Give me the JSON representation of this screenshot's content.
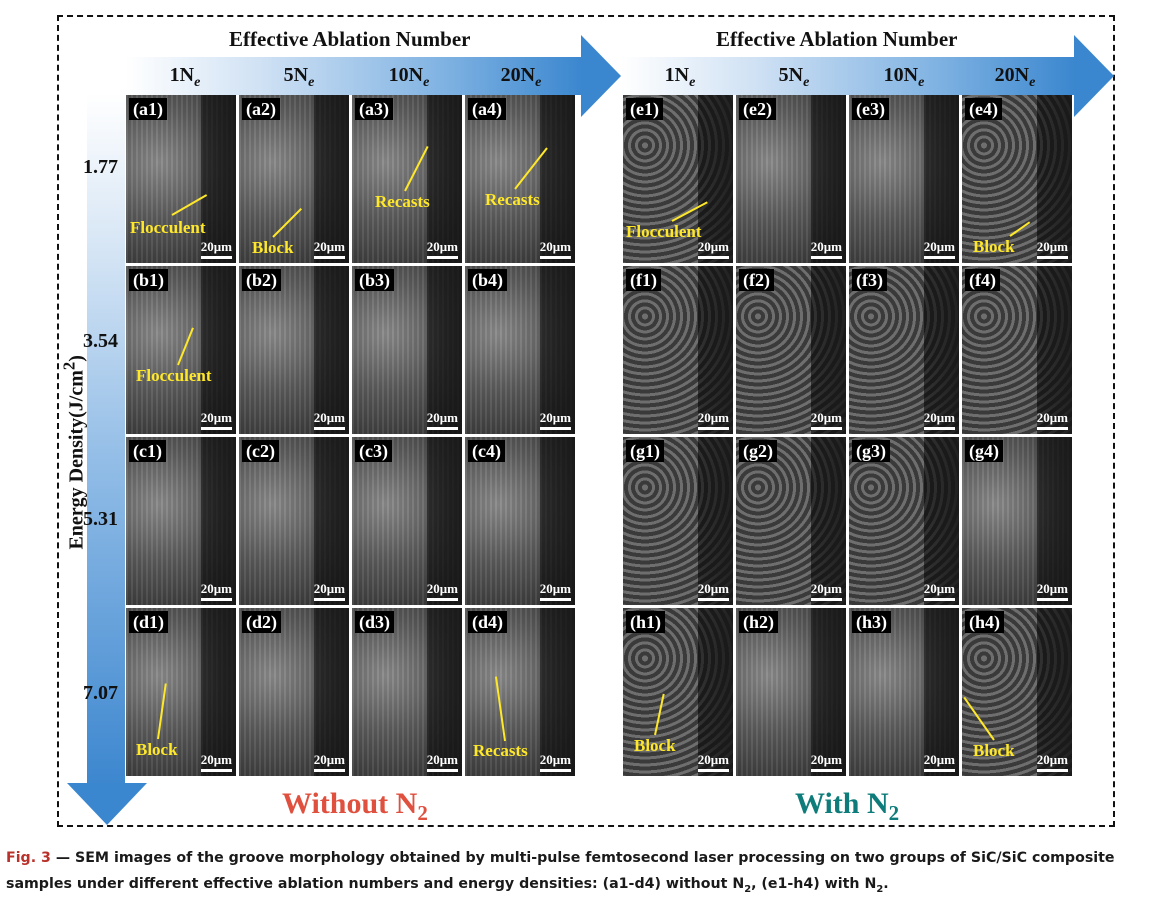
{
  "header": {
    "left_title": "Effective Ablation Number",
    "right_title": "Effective Ablation Number",
    "columns": [
      "1N",
      "5N",
      "10N",
      "20N"
    ],
    "column_sub": "e"
  },
  "axis": {
    "title": "Energy Density(J/cm",
    "title_sup": "2",
    "title_close": ")",
    "rows": [
      "1.77",
      "3.54",
      "5.31",
      "7.07"
    ]
  },
  "panels_left": [
    "(a1)",
    "(a2)",
    "(a3)",
    "(a4)",
    "(b1)",
    "(b2)",
    "(b3)",
    "(b4)",
    "(c1)",
    "(c2)",
    "(c3)",
    "(c4)",
    "(d1)",
    "(d2)",
    "(d3)",
    "(d4)"
  ],
  "panels_right": [
    "(e1)",
    "(e2)",
    "(e3)",
    "(e4)",
    "(f1)",
    "(f2)",
    "(f3)",
    "(f4)",
    "(g1)",
    "(g2)",
    "(g3)",
    "(g4)",
    "(h1)",
    "(h2)",
    "(h3)",
    "(h4)"
  ],
  "scale_bar": "20μm",
  "annotations": {
    "a1": "Flocculent",
    "a2": "Block",
    "a3": "Recasts",
    "a4": "Recasts",
    "b1": "Flocculent",
    "d1": "Block",
    "d4": "Recasts",
    "e1": "Flocculent",
    "e4": "Block",
    "h1": "Block",
    "h4": "Block"
  },
  "group_titles": {
    "left": "Without N",
    "left_sub": "2",
    "right": "With N",
    "right_sub": "2"
  },
  "colors": {
    "left_group": "#e0503f",
    "right_group": "#0e7c7a",
    "arrow": "#3b87cf",
    "annotation": "#ffe82a"
  },
  "caption": {
    "fig": "Fig. 3",
    "dash": " — ",
    "text1": "SEM images of the groove morphology obtained by multi-pulse femtosecond laser processing on two groups of SiC/SiC composite samples under different effective ablation numbers and energy densities: (a1-d4) without N",
    "sub1": "2",
    "text2": ", (e1-h4) with N",
    "sub2": "2",
    "text3": "."
  }
}
